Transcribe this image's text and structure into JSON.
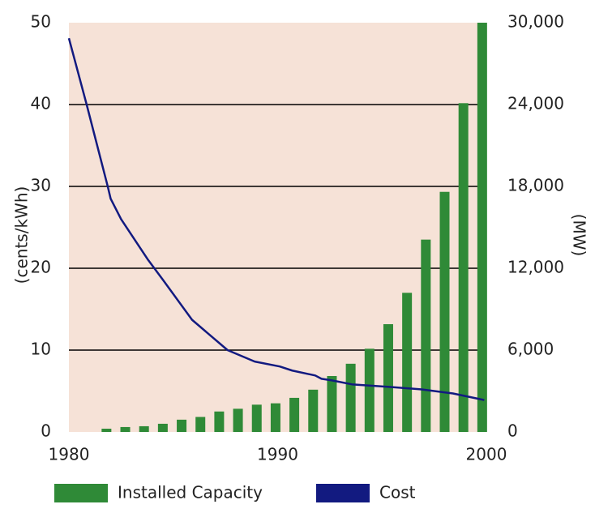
{
  "chart_data": {
    "type": "bar",
    "y_label": "(cents/kWh)",
    "y2_label": "(MW)",
    "xlim": [
      1980,
      2000
    ],
    "xticks": [
      1980,
      1990,
      2000
    ],
    "ylim": [
      0,
      50
    ],
    "yticks": [
      0,
      10,
      20,
      30,
      40,
      50
    ],
    "y2lim": [
      0,
      30000
    ],
    "y2ticks": [
      0,
      {
        "value": 6000,
        "label": "6,000"
      },
      {
        "value": 12000,
        "label": "12,000"
      },
      {
        "value": 18000,
        "label": "18,000"
      },
      {
        "value": 24000,
        "label": "24,000"
      },
      {
        "value": 30000,
        "label": "30,000"
      }
    ],
    "grid": true,
    "background": "#f6e2d7",
    "legend": "bottom",
    "series": [
      {
        "name": "Installed Capacity",
        "type": "bar",
        "axis": "y2",
        "color": "#2f8a37",
        "x": [
          1981.8,
          1982.7,
          1983.6,
          1984.5,
          1985.4,
          1986.3,
          1987.2,
          1988.1,
          1989.0,
          1989.9,
          1990.8,
          1991.7,
          1992.6,
          1993.5,
          1994.4,
          1995.3,
          1996.2,
          1997.1,
          1998.0,
          1998.9,
          1999.8
        ],
        "values": [
          240,
          360,
          420,
          600,
          900,
          1100,
          1500,
          1700,
          2000,
          2100,
          2500,
          3100,
          4100,
          5000,
          6100,
          7900,
          10200,
          14100,
          17600,
          24100,
          30000
        ]
      },
      {
        "name": "Cost",
        "type": "line",
        "axis": "y",
        "color": "#121a80",
        "x": [
          1980.0,
          1980.85,
          1981.86,
          1982.0,
          1982.5,
          1983.8,
          1984.5,
          1985.9,
          1987.6,
          1988.9,
          1990.1,
          1990.7,
          1991.8,
          1992.1,
          1992.6,
          1993.6,
          1995.4,
          1996.9,
          1998.4,
          1999.9
        ],
        "values": [
          48.1,
          40,
          30,
          28.5,
          26,
          21,
          18.6,
          13.7,
          10,
          8.6,
          8,
          7.5,
          6.9,
          6.5,
          6.3,
          5.8,
          5.5,
          5.2,
          4.7,
          3.9
        ]
      }
    ]
  }
}
